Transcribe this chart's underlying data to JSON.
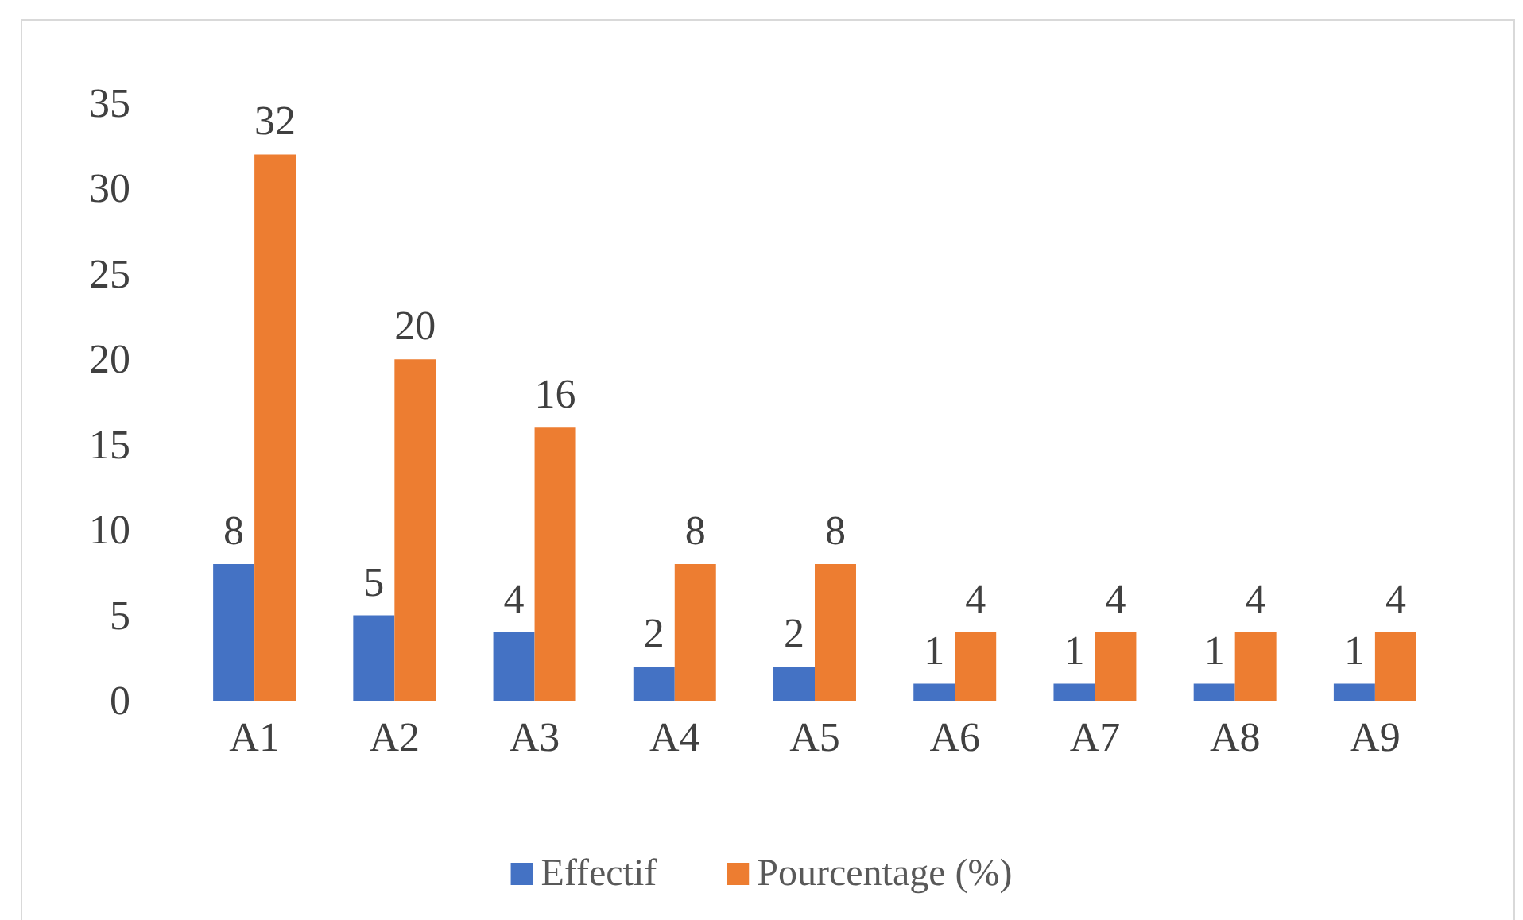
{
  "chart_data": {
    "type": "bar",
    "categories": [
      "A1",
      "A2",
      "A3",
      "A4",
      "A5",
      "A6",
      "A7",
      "A8",
      "A9"
    ],
    "series": [
      {
        "name": "Effectif",
        "color": "#4472c4",
        "values": [
          8,
          5,
          4,
          2,
          2,
          1,
          1,
          1,
          1
        ]
      },
      {
        "name": "Pourcentage (%)",
        "color": "#ed7d31",
        "values": [
          32,
          20,
          16,
          8,
          8,
          4,
          4,
          4,
          4
        ]
      }
    ],
    "ylim": [
      0,
      35
    ],
    "yticks": [
      0,
      5,
      10,
      15,
      20,
      25,
      30,
      35
    ],
    "grid": false,
    "legend": "bottom",
    "data_labels": true
  }
}
